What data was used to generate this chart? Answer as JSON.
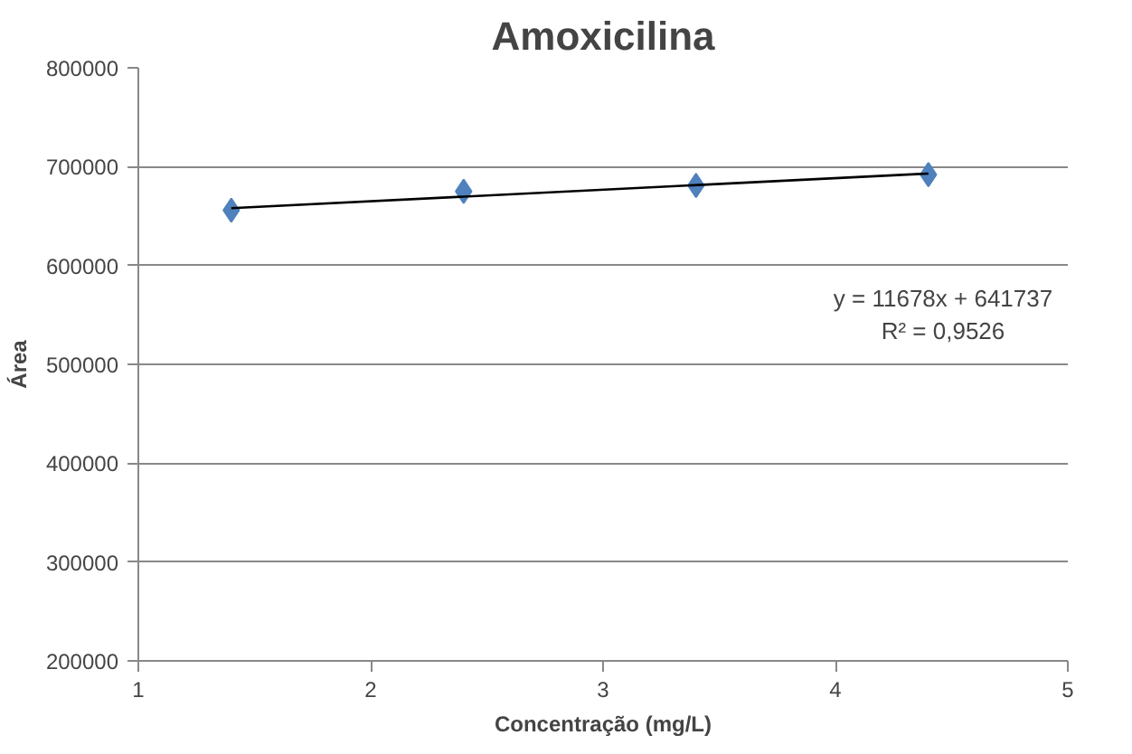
{
  "chart_data": {
    "type": "scatter",
    "title": "Amoxicilina",
    "xlabel": "Concentração (mg/L)",
    "ylabel": "Área",
    "series": [
      {
        "color": "#4f81bd",
        "x": [
          1.4,
          2.4,
          3.4,
          4.4
        ],
        "values": [
          656000,
          675000,
          681000,
          692000
        ],
        "marker": "diamond"
      },
      {
        "type": "line",
        "color": "#000000",
        "x": [
          1.4,
          4.4
        ],
        "values": [
          658000,
          693000
        ],
        "line_style": "solid"
      }
    ],
    "xlim": [
      1,
      5
    ],
    "xticks": [
      1,
      2,
      3,
      4,
      5
    ],
    "ylim": [
      200000,
      800000
    ],
    "yticks": [
      200000,
      300000,
      400000,
      500000,
      600000,
      700000,
      800000
    ],
    "grid": "y",
    "annotations": [
      "y = 11678x + 641737\nR² = 0,9526"
    ]
  }
}
